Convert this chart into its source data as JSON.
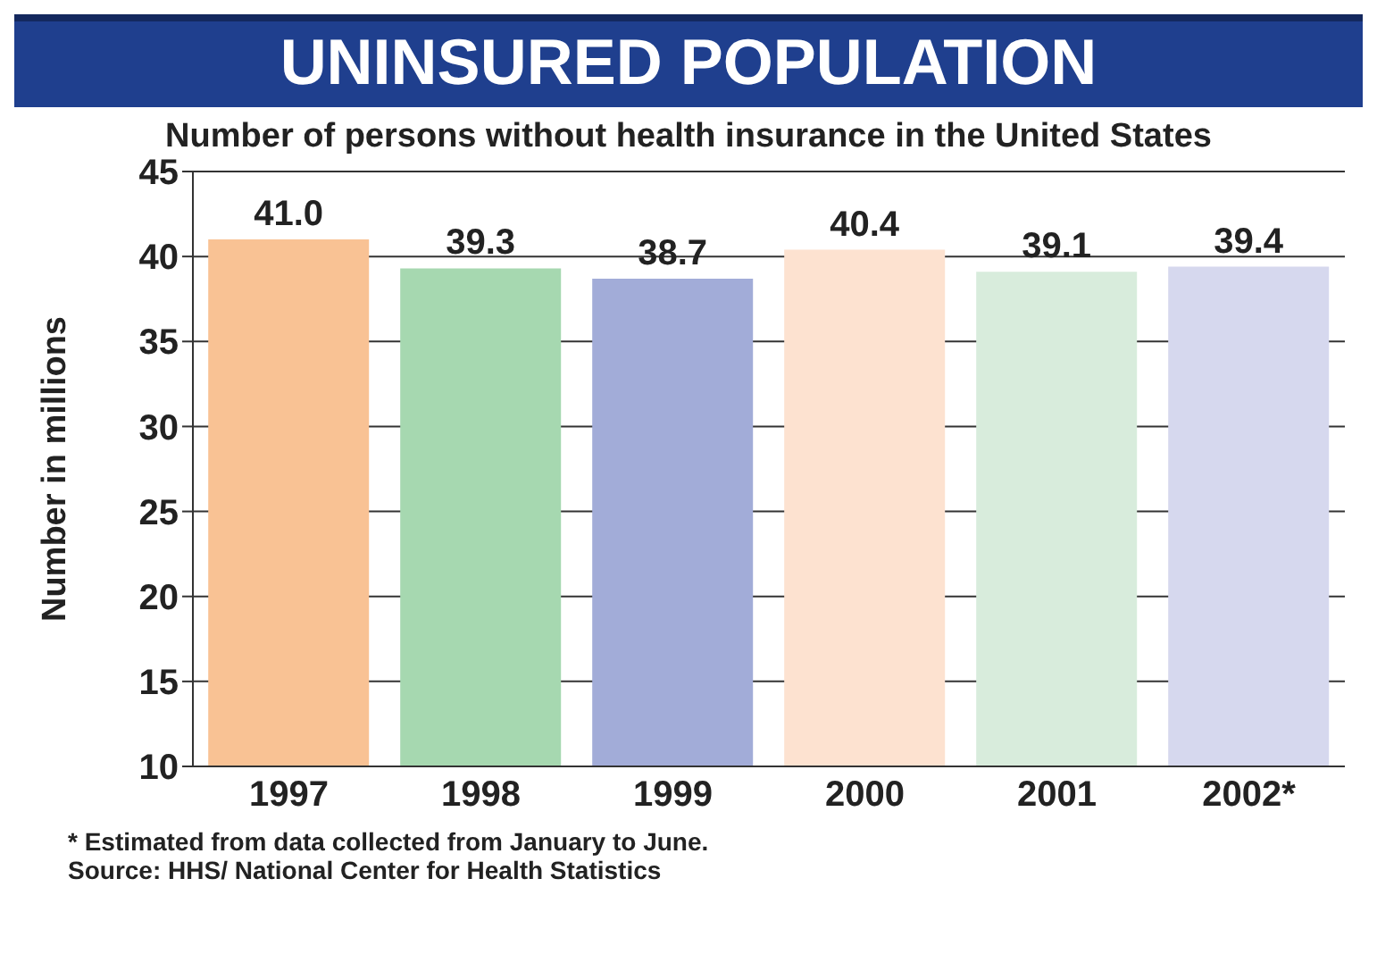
{
  "chart_data": {
    "type": "bar",
    "title": "UNINSURED POPULATION",
    "subtitle": "Number of persons without health insurance in the United States",
    "ylabel": "Number in millions",
    "categories": [
      "1997",
      "1998",
      "1999",
      "2000",
      "2001",
      "2002*"
    ],
    "values": [
      41.0,
      39.3,
      38.7,
      40.4,
      39.1,
      39.4
    ],
    "value_labels": [
      "41.0",
      "39.3",
      "38.7",
      "40.4",
      "39.1",
      "39.4"
    ],
    "colors": [
      "#f9c294",
      "#a6d8b0",
      "#a2acd8",
      "#fde2d0",
      "#d8ecdc",
      "#d6d8ee"
    ],
    "ylim": [
      10,
      45
    ],
    "yticks": [
      10,
      15,
      20,
      25,
      30,
      35,
      40,
      45
    ],
    "grid": "y",
    "annotations": [
      "* Estimated from data collected from January to June.",
      "Source: HHS/ National Center for Health Statistics"
    ]
  }
}
